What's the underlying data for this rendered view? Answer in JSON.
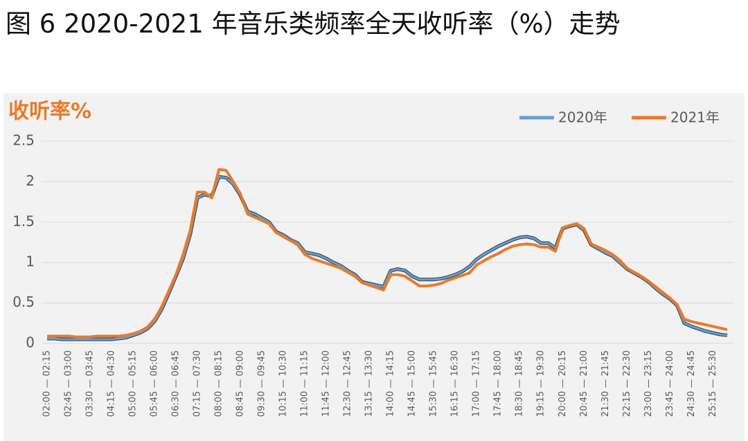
{
  "chart_data": {
    "type": "line",
    "title": "图 6 2020-2021 年音乐类频率全天收听率（%）走势",
    "y_label": "收听率%",
    "categories": [
      "02:00 — 02:15",
      null,
      null,
      "02:45 — 03:00",
      null,
      null,
      "03:30 — 03:45",
      null,
      null,
      "04:15 — 04:30",
      null,
      null,
      "05:00 — 05:15",
      null,
      null,
      "05:45 — 06:00",
      null,
      null,
      "06:30 — 06:45",
      null,
      null,
      "07:15 — 07:30",
      null,
      null,
      "08:00 — 08:15",
      null,
      null,
      "08:45 — 09:00",
      null,
      null,
      "09:30 — 09:45",
      null,
      null,
      "10:15 — 10:30",
      null,
      null,
      "11:00 — 11:15",
      null,
      null,
      "11:45 — 12:00",
      null,
      null,
      "12:30 — 12:45",
      null,
      null,
      "13:15 — 13:30",
      null,
      null,
      "14:00 — 14:15",
      null,
      null,
      "14:45 — 15:00",
      null,
      null,
      "15:30 — 15:45",
      null,
      null,
      "16:15 — 16:30",
      null,
      null,
      "17:00 — 17:15",
      null,
      null,
      "17:45 — 18:00",
      null,
      null,
      "18:30 — 18:45",
      null,
      null,
      "19:15 — 19:30",
      null,
      null,
      "20:00 — 20:15",
      null,
      null,
      "20:45 — 21:00",
      null,
      null,
      "21:30 — 21:45",
      null,
      null,
      "22:15 — 22:30",
      null,
      null,
      "23:00 — 23:15",
      null,
      null,
      "23:45 — 24:00",
      null,
      null,
      "24:30 — 24:45",
      null,
      null,
      "25:15 — 25:30",
      null,
      null
    ],
    "series": [
      {
        "name": "2020年",
        "color": "#6a9ecf",
        "values": [
          0.06,
          0.06,
          0.05,
          0.05,
          0.05,
          0.05,
          0.05,
          0.05,
          0.05,
          0.05,
          0.06,
          0.07,
          0.1,
          0.13,
          0.18,
          0.27,
          0.42,
          0.62,
          0.83,
          1.05,
          1.35,
          1.8,
          1.84,
          1.82,
          2.06,
          2.05,
          1.97,
          1.83,
          1.63,
          1.6,
          1.55,
          1.5,
          1.38,
          1.34,
          1.28,
          1.24,
          1.13,
          1.11,
          1.09,
          1.05,
          1.0,
          0.96,
          0.9,
          0.85,
          0.76,
          0.74,
          0.72,
          0.7,
          0.9,
          0.92,
          0.9,
          0.83,
          0.79,
          0.79,
          0.79,
          0.8,
          0.82,
          0.85,
          0.89,
          0.95,
          1.04,
          1.1,
          1.15,
          1.2,
          1.24,
          1.28,
          1.31,
          1.32,
          1.3,
          1.24,
          1.24,
          1.18,
          1.42,
          1.45,
          1.47,
          1.4,
          1.22,
          1.17,
          1.12,
          1.08,
          1.0,
          0.92,
          0.87,
          0.82,
          0.76,
          0.68,
          0.61,
          0.55,
          0.47,
          0.25,
          0.21,
          0.18,
          0.15,
          0.13,
          0.11,
          0.1
        ]
      },
      {
        "name": "2021年",
        "color": "#e87a2b",
        "values": [
          0.09,
          0.09,
          0.09,
          0.09,
          0.08,
          0.08,
          0.08,
          0.09,
          0.09,
          0.09,
          0.09,
          0.1,
          0.12,
          0.15,
          0.2,
          0.3,
          0.45,
          0.65,
          0.85,
          1.1,
          1.4,
          1.87,
          1.87,
          1.8,
          2.15,
          2.14,
          2.0,
          1.85,
          1.6,
          1.56,
          1.52,
          1.48,
          1.37,
          1.32,
          1.27,
          1.22,
          1.1,
          1.05,
          1.02,
          0.99,
          0.96,
          0.93,
          0.88,
          0.83,
          0.75,
          0.72,
          0.69,
          0.66,
          0.85,
          0.85,
          0.83,
          0.77,
          0.71,
          0.71,
          0.72,
          0.74,
          0.78,
          0.81,
          0.84,
          0.87,
          0.97,
          1.02,
          1.07,
          1.11,
          1.16,
          1.2,
          1.22,
          1.23,
          1.22,
          1.19,
          1.19,
          1.14,
          1.43,
          1.46,
          1.48,
          1.42,
          1.23,
          1.19,
          1.15,
          1.1,
          1.03,
          0.93,
          0.88,
          0.83,
          0.77,
          0.7,
          0.63,
          0.56,
          0.48,
          0.3,
          0.27,
          0.25,
          0.23,
          0.21,
          0.19,
          0.17
        ]
      }
    ],
    "ylim": [
      0,
      2.5
    ],
    "yticks": [
      0,
      0.5,
      1,
      1.5,
      2,
      2.5
    ],
    "grid": true,
    "legend": "top-right"
  }
}
